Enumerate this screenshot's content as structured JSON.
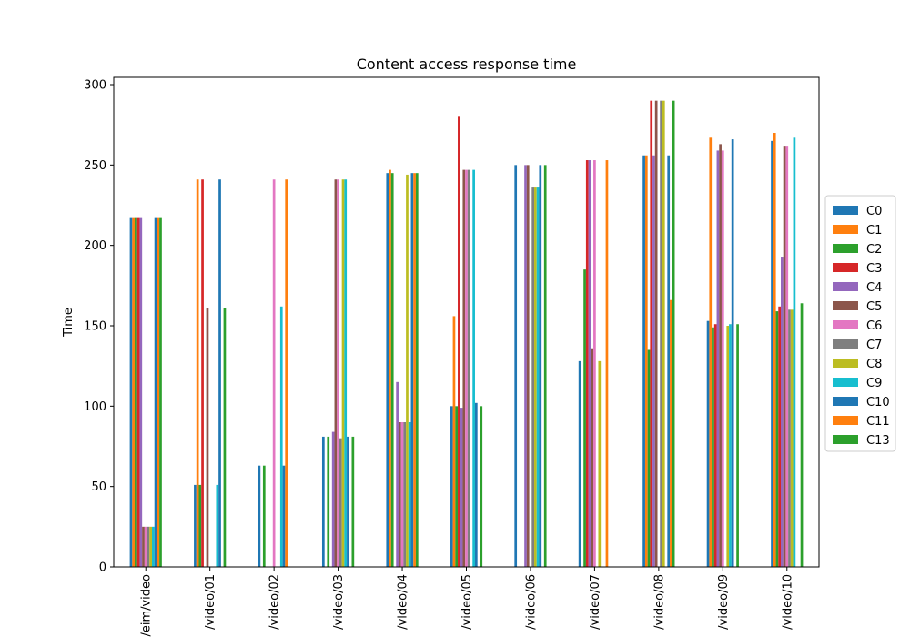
{
  "chart_data": {
    "type": "bar",
    "title": "Content access response time",
    "xlabel": "",
    "ylabel": "Time",
    "ylim": [
      0,
      300
    ],
    "yticks": [
      0,
      50,
      100,
      150,
      200,
      250,
      300
    ],
    "grid": false,
    "legend_position": "right",
    "categories": [
      "/eim/video",
      "/video/01",
      "/video/02",
      "/video/03",
      "/video/04",
      "/video/05",
      "/video/06",
      "/video/07",
      "/video/08",
      "/video/09",
      "/video/10"
    ],
    "series": [
      {
        "name": "C0",
        "color": "#1f77b4",
        "values": [
          217,
          51,
          63,
          81,
          245,
          100,
          250,
          128,
          256,
          153,
          265
        ]
      },
      {
        "name": "C1",
        "color": "#ff7f0e",
        "values": [
          217,
          241,
          0,
          0,
          247,
          156,
          0,
          0,
          256,
          267,
          270
        ]
      },
      {
        "name": "C2",
        "color": "#2ca02c",
        "values": [
          217,
          51,
          63,
          81,
          245,
          100,
          0,
          185,
          135,
          149,
          159
        ]
      },
      {
        "name": "C3",
        "color": "#d62728",
        "values": [
          217,
          241,
          0,
          0,
          0,
          280,
          0,
          253,
          290,
          151,
          162
        ]
      },
      {
        "name": "C4",
        "color": "#9467bd",
        "values": [
          217,
          0,
          0,
          84,
          115,
          99,
          250,
          253,
          256,
          259,
          193
        ]
      },
      {
        "name": "C5",
        "color": "#8c564b",
        "values": [
          25,
          161,
          0,
          241,
          90,
          247,
          250,
          136,
          290,
          263,
          262
        ]
      },
      {
        "name": "C6",
        "color": "#e377c2",
        "values": [
          25,
          0,
          241,
          241,
          90,
          247,
          0,
          253,
          0,
          259,
          262
        ]
      },
      {
        "name": "C7",
        "color": "#7f7f7f",
        "values": [
          25,
          0,
          0,
          80,
          90,
          247,
          236,
          0,
          290,
          0,
          160
        ]
      },
      {
        "name": "C8",
        "color": "#bcbd22",
        "values": [
          25,
          0,
          0,
          241,
          244,
          0,
          236,
          128,
          290,
          150,
          160
        ]
      },
      {
        "name": "C9",
        "color": "#17becf",
        "values": [
          25,
          51,
          162,
          241,
          90,
          247,
          236,
          0,
          0,
          151,
          267
        ]
      },
      {
        "name": "C10",
        "color": "#1f77b4",
        "values": [
          217,
          241,
          63,
          81,
          245,
          102,
          250,
          0,
          256,
          266,
          0
        ]
      },
      {
        "name": "C11",
        "color": "#ff7f0e",
        "values": [
          217,
          0,
          241,
          0,
          245,
          0,
          0,
          253,
          166,
          0,
          0
        ]
      },
      {
        "name": "C13",
        "color": "#2ca02c",
        "values": [
          217,
          161,
          0,
          81,
          245,
          100,
          250,
          0,
          290,
          151,
          164
        ]
      }
    ]
  }
}
